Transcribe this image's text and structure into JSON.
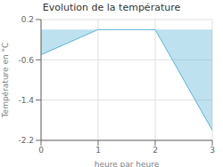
{
  "chart_data": {
    "type": "area",
    "title": "Evolution de la température",
    "xlabel": "heure par heure",
    "ylabel": "Température en °C",
    "x": [
      0,
      1,
      2,
      3
    ],
    "values": [
      -0.5,
      0.0,
      0.0,
      -2.0
    ],
    "color": "#5ab4d6",
    "xlim": [
      0,
      3
    ],
    "ylim": [
      -2.2,
      0.2
    ],
    "xticks": [
      0,
      1,
      2,
      3
    ],
    "yticks": [
      0.2,
      -0.6,
      -1.4,
      -2.2
    ],
    "grid": true
  }
}
